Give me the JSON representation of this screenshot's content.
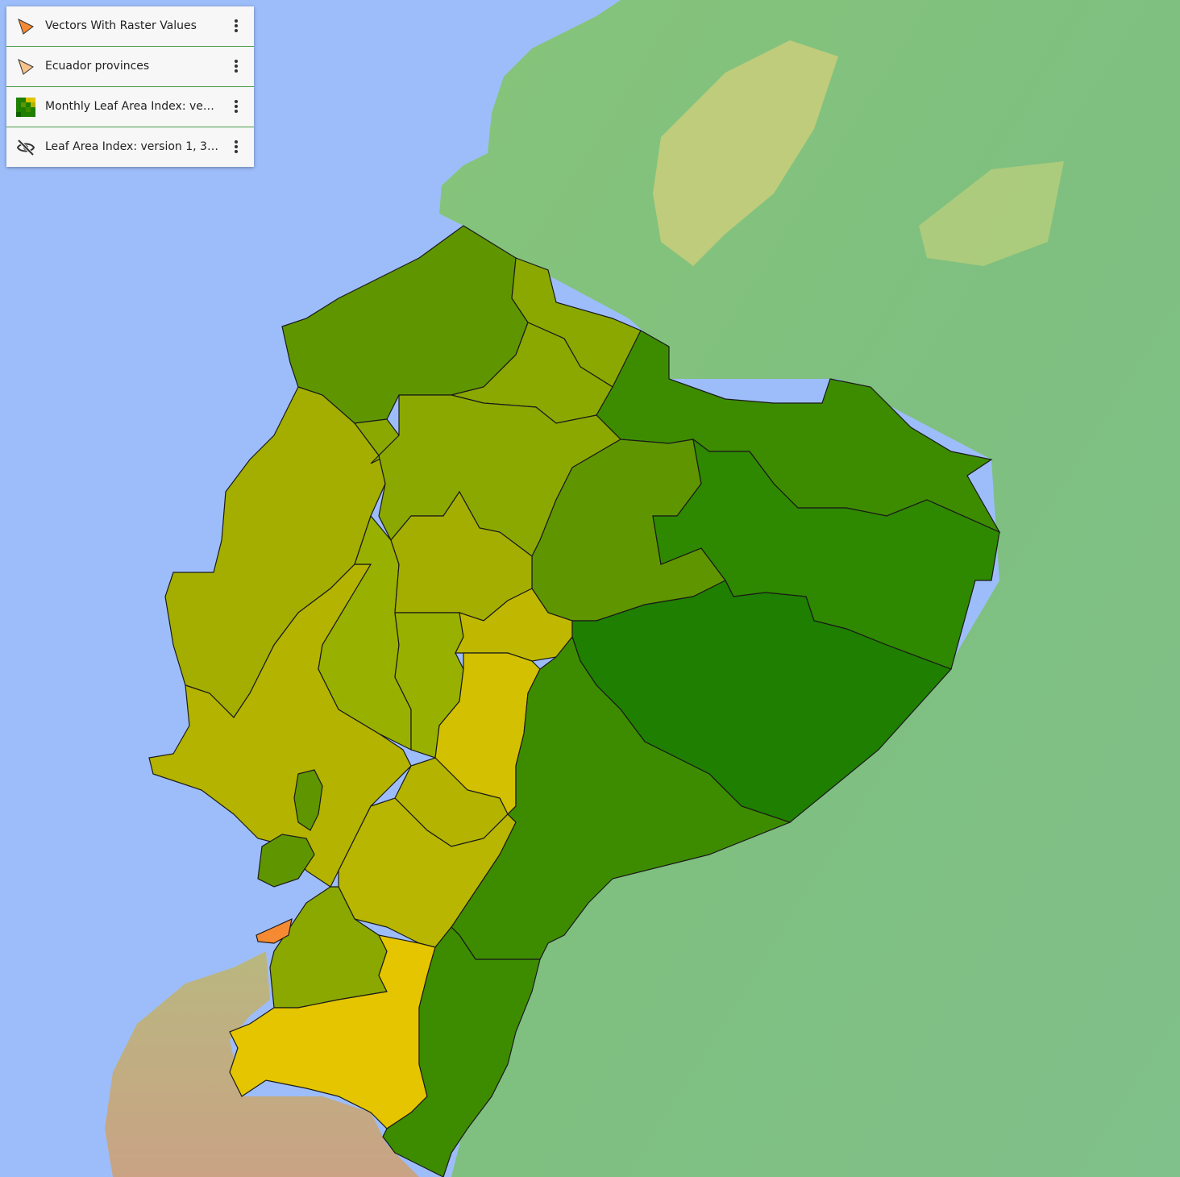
{
  "layers": [
    {
      "label": "Vectors With Raster Values",
      "icon": "vector-triangle-icon",
      "color": "#f68a33"
    },
    {
      "label": "Ecuador provinces",
      "icon": "vector-triangle-icon",
      "color": "#f7c28a"
    },
    {
      "label": "Monthly Leaf Area Index: vers...",
      "icon": "raster-gradient-icon",
      "color": "#1e8c00"
    },
    {
      "label": "Leaf Area Index: version 1, 333...",
      "icon": "eye-off-icon",
      "color": "#333333"
    }
  ],
  "map": {
    "ocean_color": "#9dbdfa",
    "land_color": "#7cc07c",
    "province_fill_scale": [
      "#1e7f00",
      "#3d8c00",
      "#5f9600",
      "#8aa800",
      "#b3b300",
      "#d8c100",
      "#e4c500"
    ]
  }
}
